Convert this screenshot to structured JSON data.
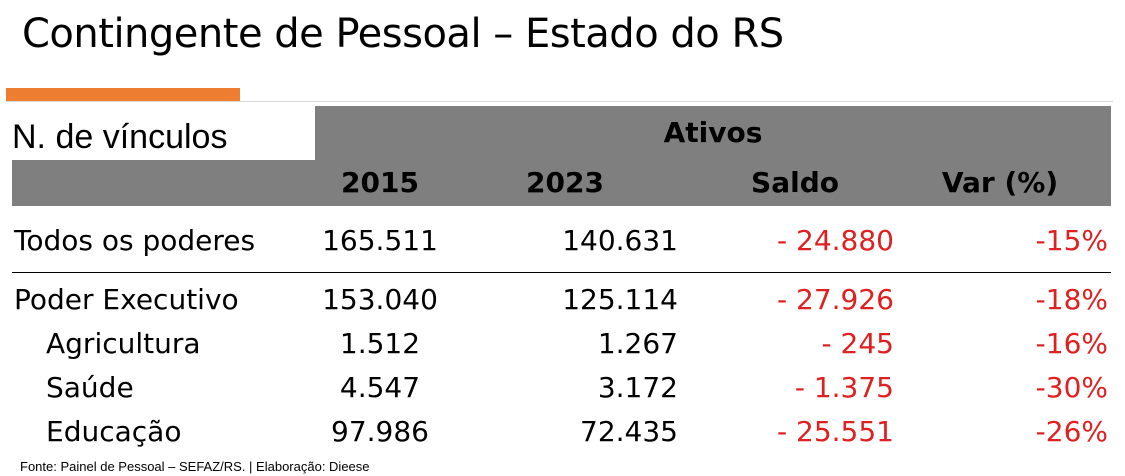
{
  "slide": {
    "title": "Contingente de Pessoal – Estado do RS",
    "accent_color": "#ed7d31",
    "header_band_color": "#7f7f7f"
  },
  "table": {
    "row_label_header": "N. de vínculos",
    "group_header": "Ativos",
    "columns": [
      "2015",
      "2023",
      "Saldo",
      "Var (%)"
    ],
    "rows": [
      {
        "label": "Todos os poderes",
        "y2015": "165.511",
        "y2023": "140.631",
        "saldo": "- 24.880",
        "var": "-15%"
      },
      {
        "label": "Poder Executivo",
        "y2015": "153.040",
        "y2023": "125.114",
        "saldo": "- 27.926",
        "var": "-18%"
      },
      {
        "label": "Agricultura",
        "y2015": "1.512",
        "y2023": "1.267",
        "saldo": "- 245",
        "var": "-16%"
      },
      {
        "label": "Saúde",
        "y2015": "4.547",
        "y2023": "3.172",
        "saldo": "- 1.375",
        "var": "-30%"
      },
      {
        "label": "Educação",
        "y2015": "97.986",
        "y2023": "72.435",
        "saldo": "- 25.551",
        "var": "-26%"
      }
    ],
    "negative_color": "#e02020"
  },
  "footer": {
    "source": "Fonte: Painel de Pessoal – SEFAZ/RS. | Elaboração: Dieese"
  }
}
